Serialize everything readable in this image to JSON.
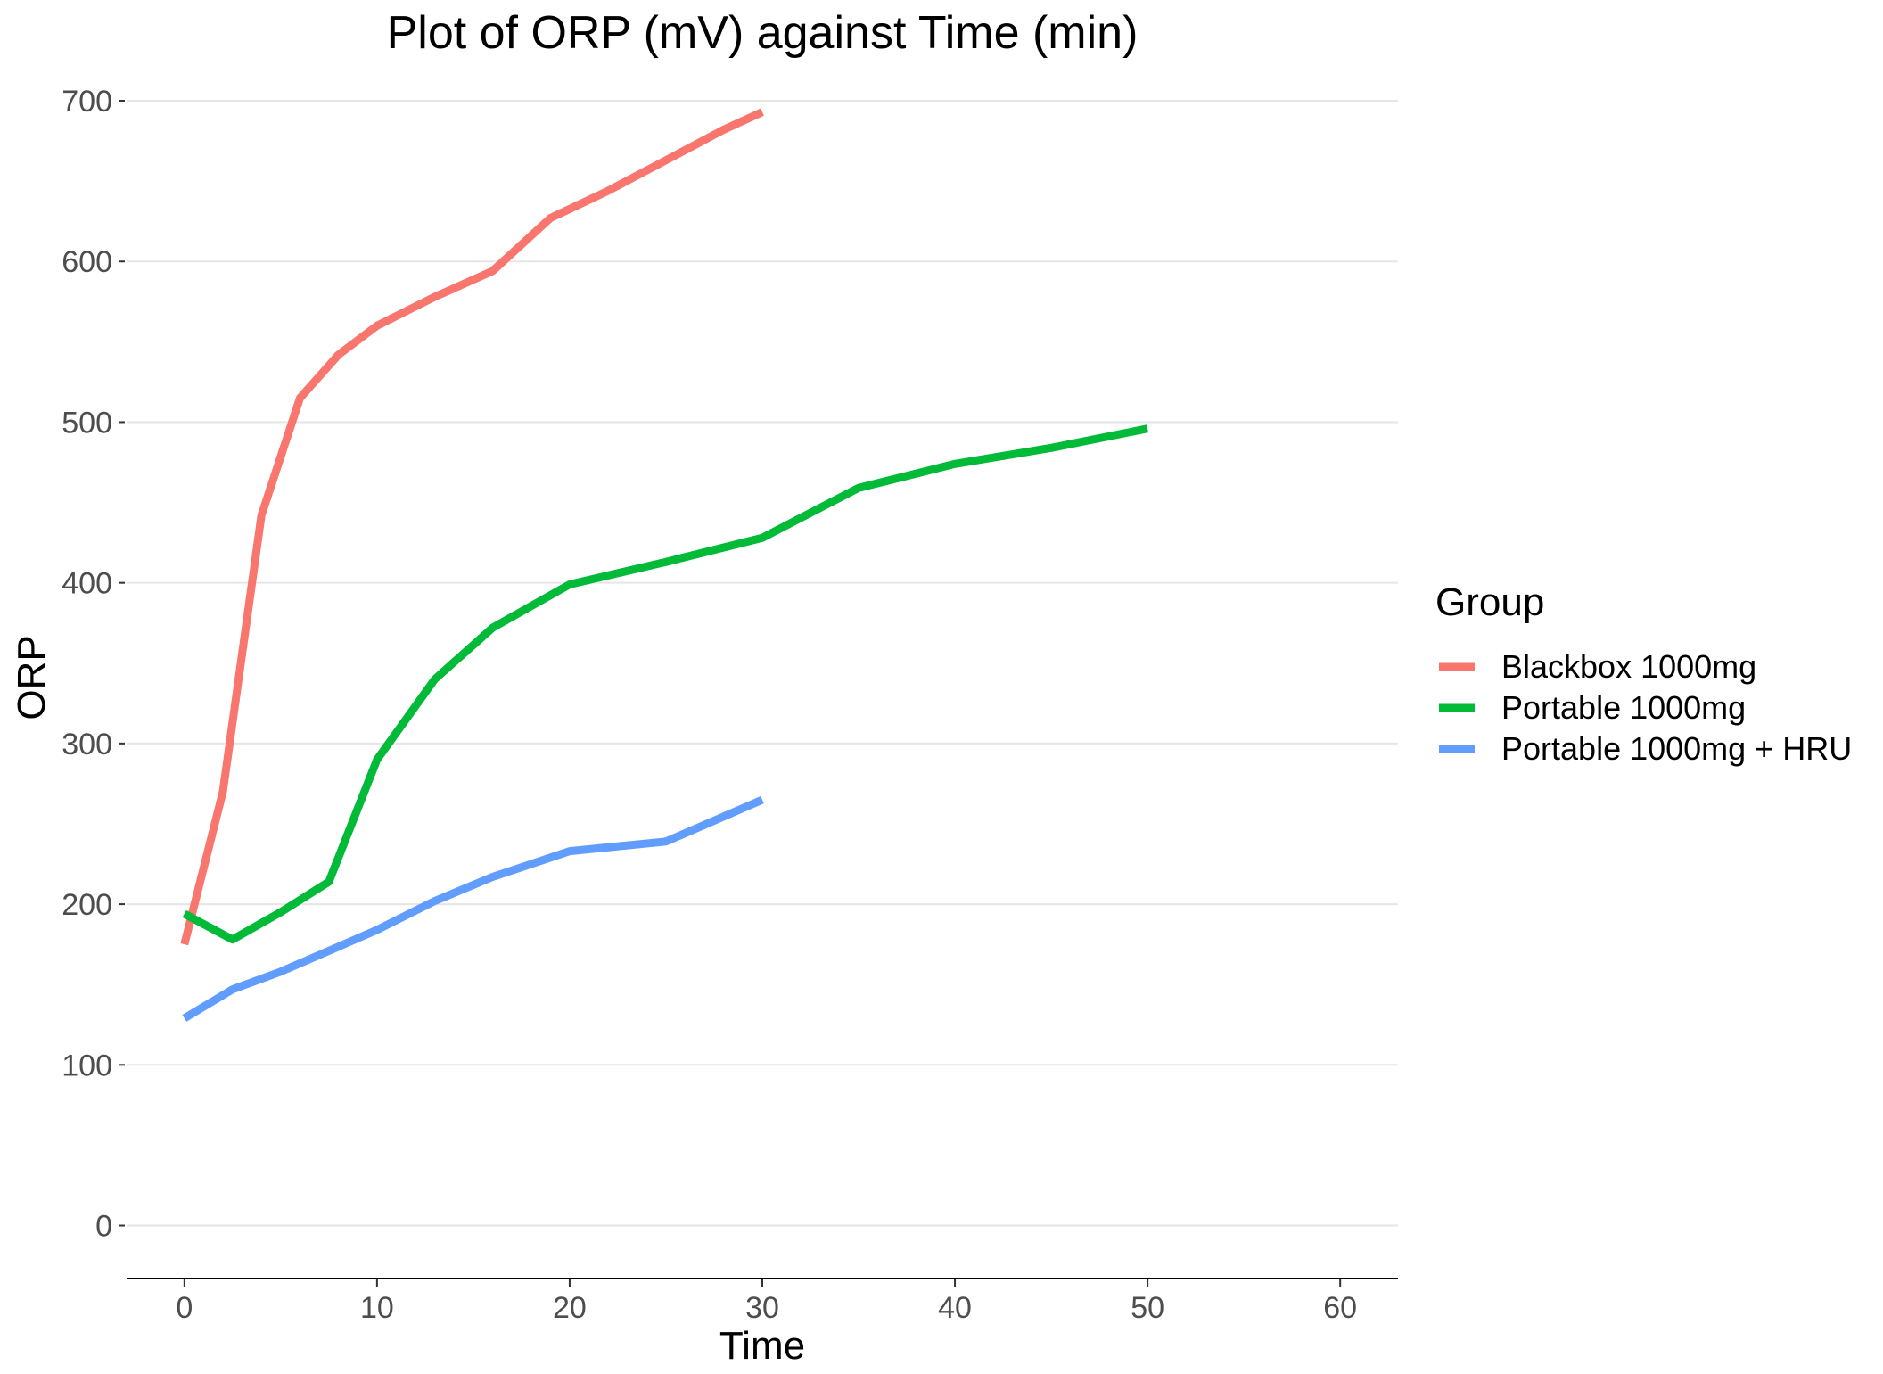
{
  "chart_data": {
    "type": "line",
    "title": "Plot of ORP (mV) against Time (min)",
    "xlabel": "Time",
    "ylabel": "ORP",
    "xlim": [
      -3,
      63
    ],
    "ylim": [
      -33,
      705
    ],
    "x_ticks": [
      0,
      10,
      20,
      30,
      40,
      50,
      60
    ],
    "y_ticks": [
      0,
      100,
      200,
      300,
      400,
      500,
      600,
      700
    ],
    "grid": "horizontal",
    "legend": {
      "title": "Group",
      "placement": "right"
    },
    "series": [
      {
        "name": "Blackbox 1000mg",
        "color": "#F8766D",
        "x": [
          0,
          2,
          4,
          6,
          8,
          10,
          13,
          16,
          19,
          22,
          25,
          28,
          30
        ],
        "y": [
          175,
          270,
          442,
          515,
          542,
          560,
          578,
          594,
          627,
          644,
          663,
          682,
          693
        ]
      },
      {
        "name": "Portable 1000mg",
        "color": "#00BA38",
        "x": [
          0,
          2.5,
          5,
          7.5,
          10,
          13,
          16,
          20,
          25,
          30,
          35,
          40,
          45,
          50
        ],
        "y": [
          194,
          178,
          195,
          214,
          290,
          340,
          372,
          399,
          413,
          428,
          459,
          474,
          484,
          496
        ]
      },
      {
        "name": "Portable 1000mg + HRU",
        "color": "#619CFF",
        "x": [
          0,
          2.5,
          5,
          7.5,
          10,
          13,
          16,
          20,
          25,
          30
        ],
        "y": [
          129,
          147,
          158,
          171,
          184,
          202,
          217,
          233,
          239,
          265
        ]
      }
    ]
  }
}
